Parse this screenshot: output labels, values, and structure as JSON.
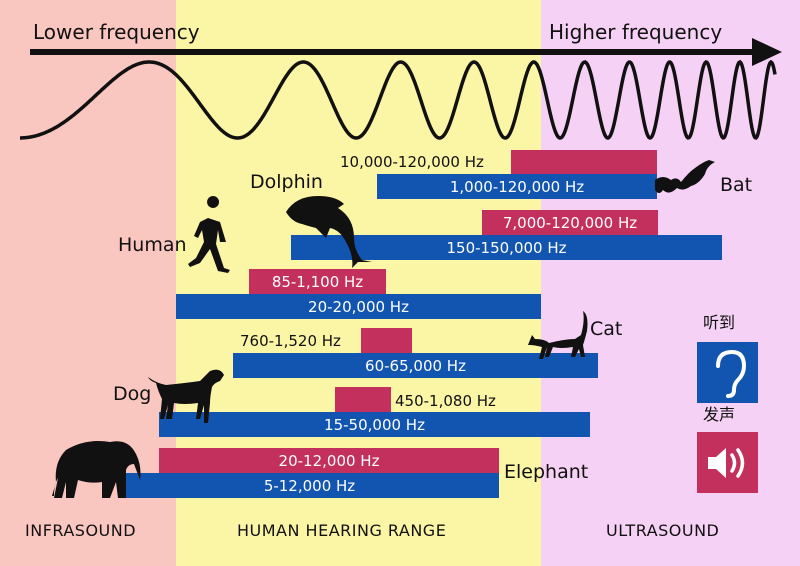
{
  "header": {
    "lower": "Lower frequency",
    "higher": "Higher frequency"
  },
  "zones": [
    {
      "label": "INFRASOUND",
      "color": "#f9c6c0"
    },
    {
      "label": "HUMAN HEARING RANGE",
      "color": "#fbf5a6"
    },
    {
      "label": "ULTRASOUND",
      "color": "#f5d2f5"
    }
  ],
  "colors": {
    "hearing": "#1155b0",
    "vocalizing": "#c4305e"
  },
  "animals": [
    {
      "name": "Bat",
      "vocal": "10,000-120,000 Hz",
      "hearing": "1,000-120,000 Hz"
    },
    {
      "name": "Dolphin",
      "vocal": "7,000-120,000 Hz",
      "hearing": "150-150,000 Hz"
    },
    {
      "name": "Human",
      "vocal": "85-1,100 Hz",
      "hearing": "20-20,000 Hz"
    },
    {
      "name": "Cat",
      "vocal": "760-1,520 Hz",
      "hearing": "60-65,000 Hz"
    },
    {
      "name": "Dog",
      "vocal": "450-1,080 Hz",
      "hearing": "15-50,000 Hz"
    },
    {
      "name": "Elephant",
      "vocal": "20-12,000 Hz",
      "hearing": "5-12,000 Hz"
    }
  ],
  "legend": {
    "hear_label": "听到",
    "hear_icon": "ear-icon",
    "speak_label": "发声",
    "speak_icon": "speaker-icon"
  }
}
